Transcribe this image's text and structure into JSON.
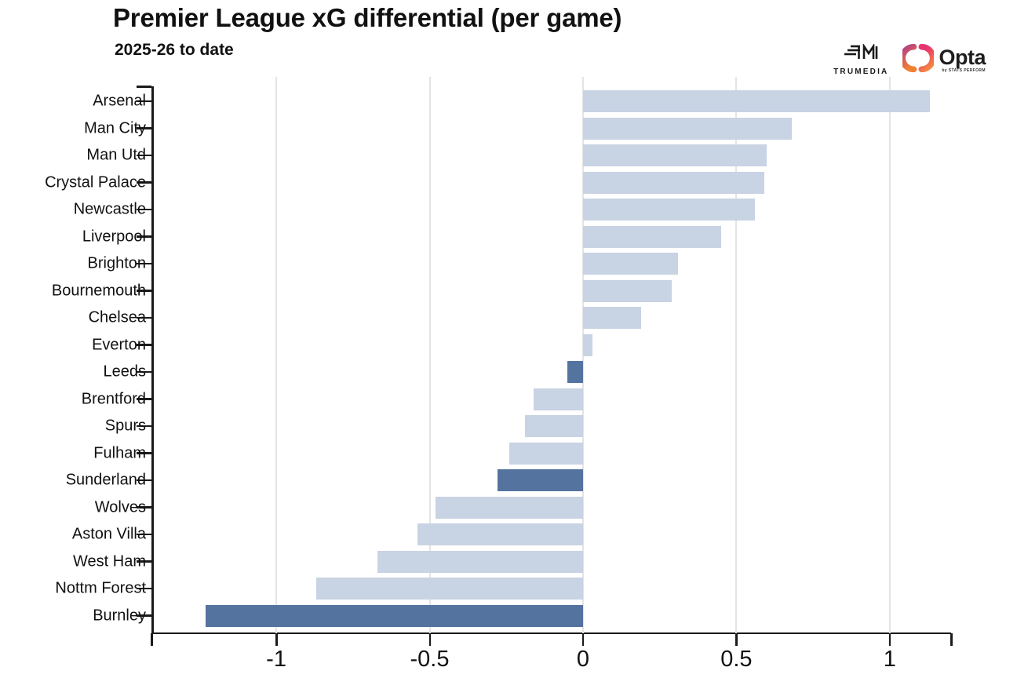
{
  "header": {
    "title": "Premier League xG differential (per game)",
    "subtitle": "2025-26 to date"
  },
  "logos": {
    "trumedia": "TRUMEDIA",
    "opta": "Opta",
    "opta_sub": "by STATS PERFORM"
  },
  "chart_data": {
    "type": "bar",
    "orientation": "horizontal",
    "title": "Premier League xG differential (per game)",
    "subtitle": "2025-26 to date",
    "xlabel": "",
    "ylabel": "",
    "xlim": [
      -1.407,
      1.2
    ],
    "xticks": [
      -1,
      -0.5,
      0,
      0.5,
      1
    ],
    "xtick_labels": [
      "-1",
      "-0.5",
      "0",
      "0.5",
      "1"
    ],
    "grid": "vertical-on",
    "categories": [
      "Arsenal",
      "Man City",
      "Man Utd",
      "Crystal Palace",
      "Newcastle",
      "Liverpool",
      "Brighton",
      "Bournemouth",
      "Chelsea",
      "Everton",
      "Leeds",
      "Brentford",
      "Spurs",
      "Fulham",
      "Sunderland",
      "Wolves",
      "Aston Villa",
      "West Ham",
      "Nottm Forest",
      "Burnley"
    ],
    "values": [
      1.13,
      0.68,
      0.6,
      0.59,
      0.56,
      0.45,
      0.31,
      0.29,
      0.19,
      0.03,
      -0.05,
      -0.16,
      -0.19,
      -0.24,
      -0.28,
      -0.48,
      -0.54,
      -0.67,
      -0.87,
      -1.23
    ],
    "highlighted": [
      "Leeds",
      "Sunderland",
      "Burnley"
    ],
    "colors": {
      "bar_default": "#c8d3e3",
      "bar_highlight": "#54749f",
      "gridline": "#e4e4e4",
      "axis": "#1a1a1a",
      "opta_gradient_start": "#b13a8b",
      "opta_gradient_mid": "#e8336d",
      "opta_gradient_end": "#f6933d"
    }
  }
}
